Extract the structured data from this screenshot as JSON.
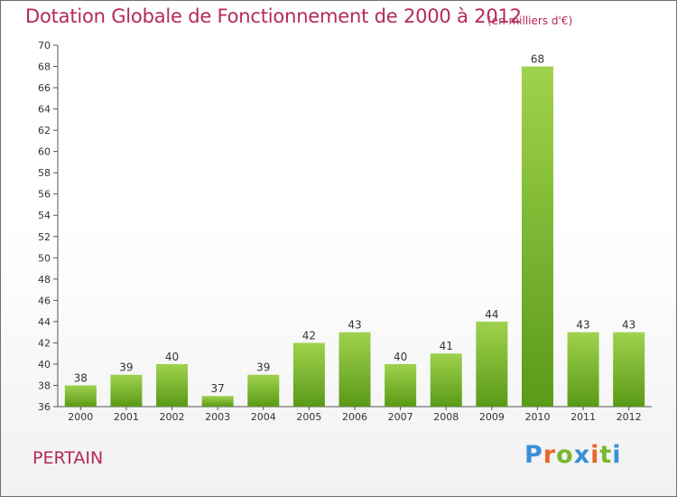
{
  "header": {
    "title": "Dotation Globale de Fonctionnement de 2000 à 2012",
    "unit": "(en milliers d'€)"
  },
  "footer": {
    "commune": "PERTAIN",
    "logo": [
      "P",
      "r",
      "o",
      "x",
      "i",
      "t",
      "i"
    ],
    "logo_text": "Proxiti"
  },
  "chart_data": {
    "type": "bar",
    "title": "Dotation Globale de Fonctionnement de 2000 à 2012",
    "subtitle": "(en milliers d'€)",
    "xlabel": "",
    "ylabel": "",
    "categories": [
      "2000",
      "2001",
      "2002",
      "2003",
      "2004",
      "2005",
      "2006",
      "2007",
      "2008",
      "2009",
      "2010",
      "2011",
      "2012"
    ],
    "values": [
      38,
      39,
      40,
      37,
      39,
      42,
      43,
      40,
      41,
      44,
      68,
      43,
      43
    ],
    "ylim": [
      36,
      70
    ],
    "ytick_step": 2,
    "grid": false,
    "colors": {
      "bar_top": "#9fd24e",
      "bar_bottom": "#5a9a16",
      "axis": "#555555"
    }
  }
}
